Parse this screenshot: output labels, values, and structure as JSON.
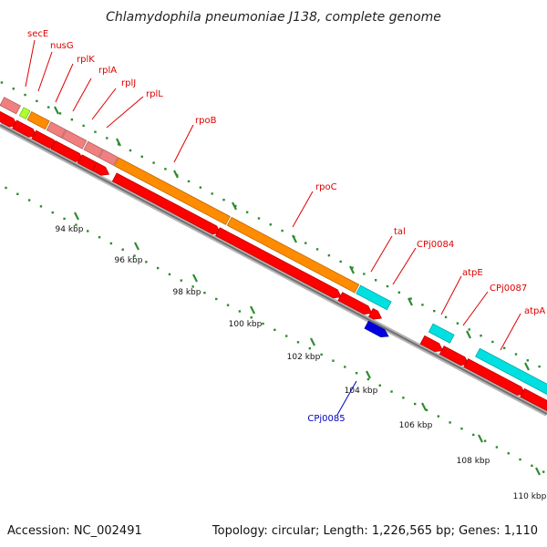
{
  "title": "Chlamydophila pneumoniae J138, complete genome",
  "footer": {
    "accession": "Accession: NC_002491",
    "topology": "Topology: circular; Length: 1,226,565 bp; Genes: 1,110"
  },
  "colors": {
    "forward_gene": "#ff0000",
    "reverse_gene": "#0000e0",
    "label_forward": "#dd0000",
    "label_reverse": "#0000bb",
    "tick": "#2e8b2e",
    "backbone": "#7a7a7a",
    "cds_orange": "#ff8c00",
    "cds_cyan": "#00e0e0",
    "cds_pink": "#f08080",
    "cds_green": "#adff2f"
  },
  "tick_labels": [
    {
      "text": "94 kbp"
    },
    {
      "text": "96 kbp"
    },
    {
      "text": "98 kbp"
    },
    {
      "text": "100 kbp"
    },
    {
      "text": "102 kbp"
    },
    {
      "text": "104 kbp"
    },
    {
      "text": "106 kbp"
    },
    {
      "text": "108 kbp"
    },
    {
      "text": "110 kbp"
    }
  ],
  "gene_labels": [
    {
      "text": "secE",
      "strand": "forward"
    },
    {
      "text": "nusG",
      "strand": "forward"
    },
    {
      "text": "rplK",
      "strand": "forward"
    },
    {
      "text": "rplA",
      "strand": "forward"
    },
    {
      "text": "rplJ",
      "strand": "forward"
    },
    {
      "text": "rplL",
      "strand": "forward"
    },
    {
      "text": "rpoB",
      "strand": "forward"
    },
    {
      "text": "rpoC",
      "strand": "forward"
    },
    {
      "text": "tal",
      "strand": "forward"
    },
    {
      "text": "CPj0084",
      "strand": "forward"
    },
    {
      "text": "atpE",
      "strand": "forward"
    },
    {
      "text": "CPj0087",
      "strand": "forward"
    },
    {
      "text": "atpA",
      "strand": "forward"
    },
    {
      "text": "CPj0085",
      "strand": "reverse"
    }
  ]
}
